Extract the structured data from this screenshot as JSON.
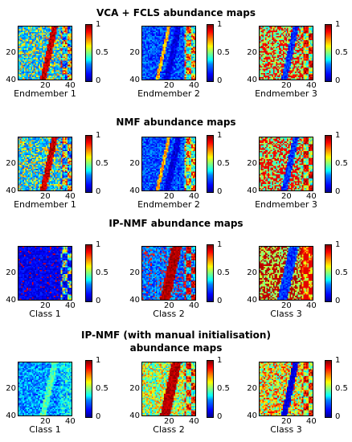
{
  "rows": [
    {
      "title_lines": [
        "VCA + FCLS abundance maps"
      ],
      "panels": [
        {
          "label": "Endmember 1",
          "variant": "em1",
          "seed": 11
        },
        {
          "label": "Endmember 2",
          "variant": "em2",
          "seed": 12
        },
        {
          "label": "Endmember 3",
          "variant": "em3",
          "seed": 13
        }
      ]
    },
    {
      "title_lines": [
        "NMF abundance maps"
      ],
      "panels": [
        {
          "label": "Endmember 1",
          "variant": "em1",
          "seed": 21
        },
        {
          "label": "Endmember 2",
          "variant": "em2",
          "seed": 22
        },
        {
          "label": "Endmember 3",
          "variant": "em3",
          "seed": 23
        }
      ]
    },
    {
      "title_lines": [
        "IP-NMF abundance maps"
      ],
      "panels": [
        {
          "label": "Class 1",
          "variant": "ip1",
          "seed": 31
        },
        {
          "label": "Class 2",
          "variant": "ip2",
          "seed": 32
        },
        {
          "label": "Class 3",
          "variant": "ip3",
          "seed": 33
        }
      ]
    },
    {
      "title_lines": [
        "IP-NMF (with manual initialisation)",
        "abundance maps"
      ],
      "panels": [
        {
          "label": "Class 1",
          "variant": "mi1",
          "seed": 41
        },
        {
          "label": "Class 2",
          "variant": "mi2",
          "seed": 42
        },
        {
          "label": "Class 3",
          "variant": "mi3",
          "seed": 43
        }
      ]
    }
  ],
  "chart_data": {
    "type": "heatmap",
    "grid_size": [
      40,
      40
    ],
    "x_ticks": [
      "20",
      "40"
    ],
    "y_ticks": [
      "20",
      "40"
    ],
    "colorbar_ticks": [
      "0",
      "0.5",
      "1"
    ],
    "colormap": "jet",
    "value_range": [
      0,
      1
    ]
  }
}
